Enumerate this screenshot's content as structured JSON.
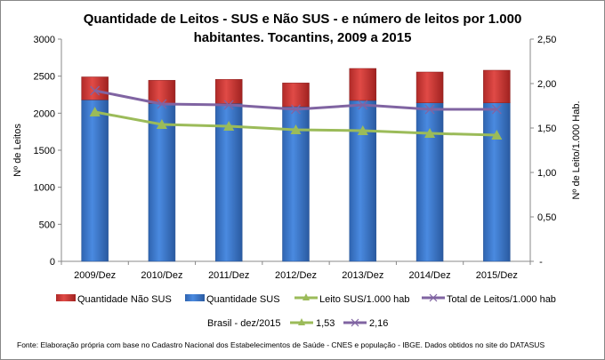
{
  "chart_data": {
    "type": "bar",
    "title_lines": [
      "Quantidade de Leitos - SUS e Não SUS - e número de leitos por 1.000",
      "habitantes. Tocantins, 2009 a 2015"
    ],
    "categories": [
      "2009/Dez",
      "2010/Dez",
      "2011/Dez",
      "2012/Dez",
      "2013/Dez",
      "2014/Dez",
      "2015/Dez"
    ],
    "ylabel": "Nº de Leitos",
    "y2label": "Nº de Leito/1.000 Hab.",
    "ylim": [
      0,
      3000
    ],
    "yticks": [
      "0",
      "500",
      "1000",
      "1500",
      "2000",
      "2500",
      "3000"
    ],
    "y2lim": [
      0,
      2.5
    ],
    "y2ticks": [
      "-",
      "0,50",
      "1,00",
      "1,50",
      "2,00",
      "2,50"
    ],
    "grid": false,
    "legend_position": "bottom",
    "series": [
      {
        "name": "Quantidade Não SUS",
        "kind": "stacked-bar",
        "color": "#d03a37",
        "values": [
          310,
          312,
          324,
          320,
          432,
          416,
          440
        ]
      },
      {
        "name": "Quantidade SUS",
        "kind": "stacked-bar",
        "color": "#3f7fd0",
        "values": [
          2180,
          2132,
          2132,
          2088,
          2172,
          2140,
          2140
        ]
      },
      {
        "name": "Leito SUS/1.000 hab",
        "kind": "line",
        "axis": "right",
        "marker": "triangle",
        "color": "#9bbb59",
        "values": [
          1.68,
          1.54,
          1.52,
          1.48,
          1.47,
          1.44,
          1.42
        ]
      },
      {
        "name": "Total de Leitos/1.000 hab",
        "kind": "line",
        "axis": "right",
        "marker": "x",
        "color": "#8064a2",
        "values": [
          1.92,
          1.77,
          1.76,
          1.71,
          1.76,
          1.71,
          1.71
        ]
      }
    ],
    "reference": {
      "label": "Brasil -  dez/2015",
      "leito_sus": "1,53",
      "total": "2,16"
    },
    "source": "Fonte: Elaboração própria com base no  Cadastro Nacional dos Estabelecimentos de Saúde - CNES e população - IBGE. Dados obtidos no site do DATASUS"
  }
}
